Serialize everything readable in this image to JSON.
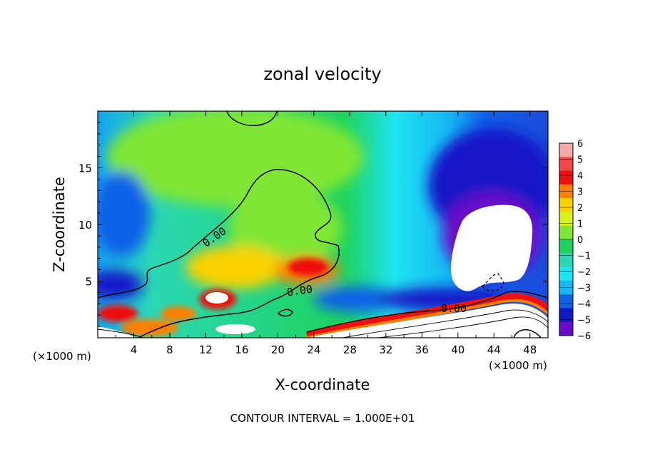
{
  "chart_data": {
    "type": "heatmap",
    "title": "zonal velocity",
    "xlabel": "X-coordinate",
    "ylabel": "Z-coordinate",
    "x_unit_left": "(×1000 m)",
    "x_unit_right": "(×1000 m)",
    "xlim": [
      0,
      50
    ],
    "ylim": [
      0,
      20
    ],
    "x_ticks": [
      4,
      8,
      12,
      16,
      20,
      24,
      28,
      32,
      36,
      40,
      44,
      48
    ],
    "y_ticks": [
      5,
      10,
      15
    ],
    "colorbar": {
      "levels": [
        6,
        5,
        4,
        3,
        2,
        1,
        0,
        -1,
        -2,
        -3,
        -4,
        -5,
        -6
      ],
      "colors": [
        "#f6a9a9",
        "#f14848",
        "#ee1111",
        "#ff7f00",
        "#fcd200",
        "#d8f21a",
        "#7fe636",
        "#1ed35d",
        "#2ad7b5",
        "#1fe4f2",
        "#16b7f3",
        "#1060e8",
        "#1218c7",
        "#6a0bc8"
      ]
    },
    "contour_labels": [
      "0.00",
      "0.00",
      "0.00"
    ],
    "contour_interval_text": "CONTOUR INTERVAL = 1.000E+01"
  }
}
